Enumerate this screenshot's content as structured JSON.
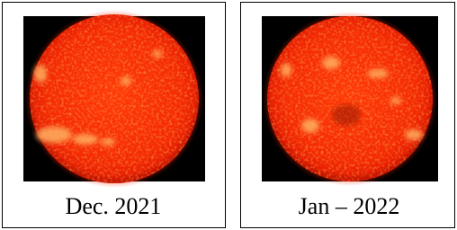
{
  "panels": [
    {
      "caption": "Dec. 2021"
    },
    {
      "caption": "Jan – 2022"
    }
  ]
}
